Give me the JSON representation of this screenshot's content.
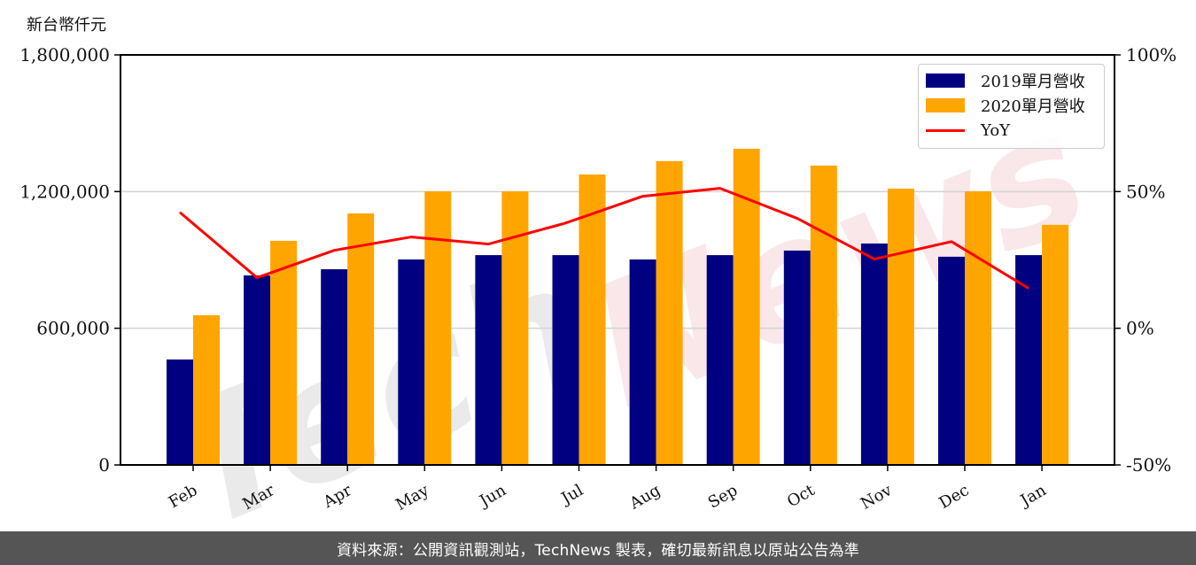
{
  "chart_data": {
    "type": "bar",
    "title": "",
    "unit_label": "新台幣仟元",
    "xlabel": "",
    "ylabel": "",
    "categories": [
      "Feb",
      "Mar",
      "Apr",
      "May",
      "Jun",
      "Jul",
      "Aug",
      "Sep",
      "Oct",
      "Nov",
      "Dec",
      "Jan"
    ],
    "series": [
      {
        "name": "2019單月營收",
        "type": "bar",
        "axis": "left",
        "color": "#000080",
        "values": [
          463000,
          832000,
          859000,
          902000,
          921000,
          921000,
          902000,
          921000,
          941000,
          972000,
          914000,
          921000
        ]
      },
      {
        "name": "2020單月營收",
        "type": "bar",
        "axis": "left",
        "color": "#FFA500",
        "values": [
          657000,
          984000,
          1104000,
          1201000,
          1201000,
          1275000,
          1334000,
          1388000,
          1314000,
          1213000,
          1201000,
          1054000
        ]
      },
      {
        "name": "YoY",
        "type": "line",
        "axis": "right",
        "color": "#FF0000",
        "values": [
          42.4,
          18.5,
          28.5,
          33.4,
          30.8,
          38.5,
          48.3,
          51.2,
          40.2,
          25.3,
          31.7,
          14.6
        ]
      }
    ],
    "left_axis": {
      "ylim": [
        0,
        1800000
      ],
      "ticks": [
        0,
        600000,
        1200000,
        1800000
      ],
      "tick_labels": [
        "0",
        "600,000",
        "1,200,000",
        "1,800,000"
      ]
    },
    "right_axis": {
      "ylim": [
        -50,
        100
      ],
      "ticks": [
        -50,
        0,
        50,
        100
      ],
      "tick_labels": [
        "-50%",
        "0%",
        "50%",
        "100%"
      ]
    },
    "grid": true,
    "legend_position": "upper right",
    "watermark": "TechNews"
  },
  "footer": {
    "source_text": "資料來源：公開資訊觀測站，TechNews 製表，確切最新訊息以原站公告為準"
  },
  "legend": {
    "items": [
      {
        "label": "2019單月營收",
        "color": "#000080"
      },
      {
        "label": "2020單月營收",
        "color": "#FFA500"
      },
      {
        "label": "YoY",
        "color": "#FF0000"
      }
    ]
  }
}
